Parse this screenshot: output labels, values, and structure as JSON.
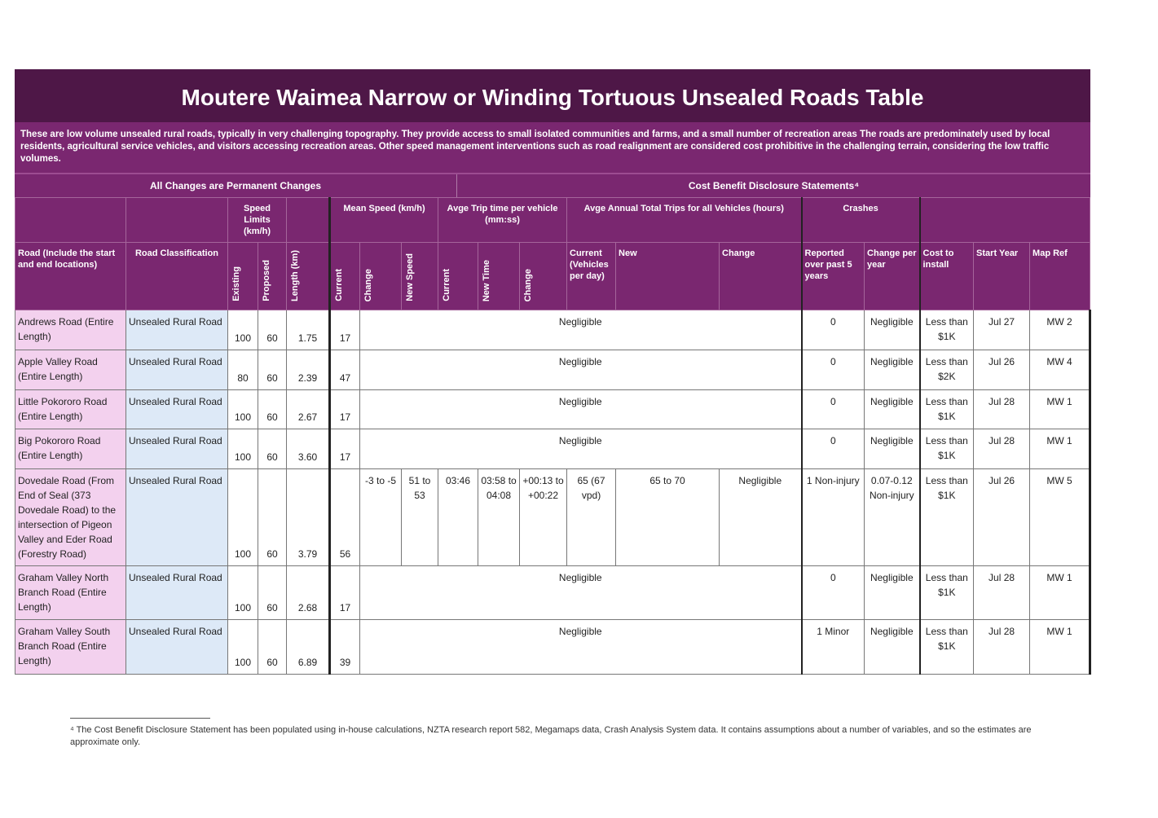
{
  "title": "Moutere Waimea Narrow or Winding Tortuous Unsealed Roads Table",
  "description": "These are low volume unsealed rural roads, typically in very challenging topography.  They provide access to small isolated communities and farms, and a small number of recreation areas The roads are predominately used by local residents, agricultural service vehicles, and visitors accessing recreation areas. Other speed management interventions such as road realignment are considered cost prohibitive in the challenging terrain, considering the low traffic volumes.",
  "groups": [
    "All Changes are Permanent Changes",
    "Cost Benefit Disclosure Statements⁴"
  ],
  "table": {
    "group_headers": [
      "Speed Limits (km/h)",
      "Mean Speed (km/h)",
      "Avge Trip time per vehicle (mm:ss)",
      "Avge Annual Total Trips for all Vehicles (hours)",
      "Crashes"
    ],
    "headers": [
      "Road (Include the start and end locations)",
      "Road Classification",
      "Existing",
      "Proposed",
      "Length (km)",
      "Current",
      "Change",
      "New Speed",
      "Current",
      "New Time",
      "Change",
      "Current (Vehicles per day)",
      "New",
      "Change",
      "Reported over past 5 years",
      "Change per year",
      "Cost to install",
      "Start Year",
      "Map Ref"
    ],
    "rows": [
      [
        "Andrews Road (Entire Length)",
        "Unsealed Rural Road",
        "100",
        "60",
        "1.75",
        "17",
        "Negligible",
        "0",
        "Negligible",
        "Less than $1K",
        "Jul 27",
        "MW 2"
      ],
      [
        "Apple Valley Road (Entire Length)",
        "Unsealed Rural Road",
        "80",
        "60",
        "2.39",
        "47",
        "Negligible",
        "0",
        "Negligible",
        "Less than $2K",
        "Jul 26",
        "MW 4"
      ],
      [
        "Little Pokororo Road (Entire Length)",
        "Unsealed Rural Road",
        "100",
        "60",
        "2.67",
        "17",
        "Negligible",
        "0",
        "Negligible",
        "Less than $1K",
        "Jul 28",
        "MW 1"
      ],
      [
        "Big Pokororo Road (Entire Length)",
        "Unsealed Rural Road",
        "100",
        "60",
        "3.60",
        "17",
        "Negligible",
        "0",
        "Negligible",
        "Less than $1K",
        "Jul 28",
        "MW 1"
      ],
      [
        "Dovedale Road (From End of Seal (373 Dovedale Road) to the intersection of Pigeon Valley and Eder Road (Forestry Road)",
        "Unsealed Rural Road",
        "100",
        "60",
        "3.79",
        "56",
        "-3 to -5",
        "51 to 53",
        "03:46",
        "03:58 to 04:08",
        "+00:13 to +00:22",
        "65 (67 vpd)",
        "65 to 70",
        "Negligible",
        "1 Non-injury",
        "0.07-0.12 Non-injury",
        "Less than $1K",
        "Jul 26",
        "MW 5"
      ],
      [
        "Graham Valley North Branch Road (Entire Length)",
        "Unsealed Rural Road",
        "100",
        "60",
        "2.68",
        "17",
        "Negligible",
        "0",
        "Negligible",
        "Less than $1K",
        "Jul 28",
        "MW 1"
      ],
      [
        "Graham Valley South Branch Road (Entire Length)",
        "Unsealed Rural Road",
        "100",
        "60",
        "6.89",
        "39",
        "Negligible",
        "1 Minor",
        "Negligible",
        "Less than $1K",
        "Jul 28",
        "MW 1"
      ]
    ]
  },
  "footnote": "⁴ The Cost Benefit Disclosure Statement has been populated using in-house calculations, NZTA research report 582, Megamaps data, Crash Analysis System data. It contains assumptions about a number of variables, and so the estimates are approximate only."
}
